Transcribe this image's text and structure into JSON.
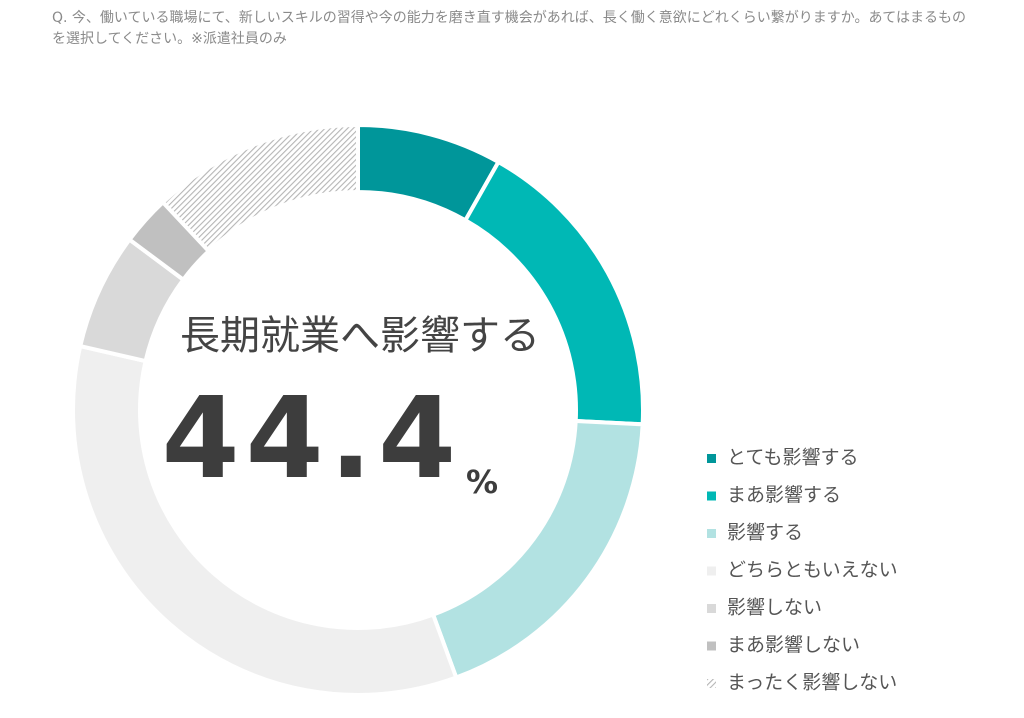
{
  "chart_data": {
    "type": "donut",
    "title": "Q. 今、働いている職場にて、新しいスキルの習得や今の能力を磨き直す機会があれば、長く働く意欲にどれくらい繋がりますか。あてはまるものを選択してください。※派遣社員のみ",
    "center_label": "長期就業へ影響する",
    "center_value": 44.4,
    "center_unit": "%",
    "categories": [
      "とても影響する",
      "まあ影響する",
      "影響する",
      "どちらともいえない",
      "影響しない",
      "まあ影響しない",
      "まったく影響しない"
    ],
    "values": [
      8.2,
      17.6,
      18.6,
      34.2,
      6.6,
      2.8,
      12.0
    ],
    "colors": [
      "#00969a",
      "#00b8b5",
      "#b2e2e2",
      "#efefef",
      "#d9d9d9",
      "#c0c0c0",
      "#b5b5b5"
    ],
    "hatched": [
      false,
      false,
      false,
      false,
      false,
      false,
      true
    ],
    "legend": "right"
  }
}
